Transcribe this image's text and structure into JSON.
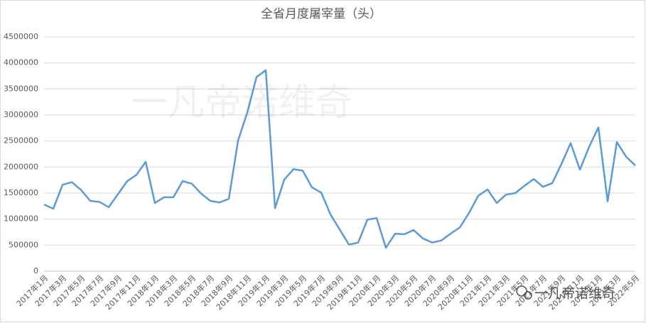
{
  "chart_data": {
    "type": "line",
    "title": "全省月度屠宰量（头）",
    "watermarks": [
      "一凡帝诺维奇",
      "一凡帝诺维奇"
    ],
    "categories": [
      "2017年1月",
      null,
      "2017年3月",
      null,
      "2017年5月",
      null,
      "2017年7月",
      null,
      "2017年9月",
      null,
      "2017年11月",
      null,
      "2018年1月",
      null,
      "2018年3月",
      null,
      "2018年5月",
      null,
      "2018年7月",
      null,
      "2018年9月",
      null,
      "2018年11月",
      null,
      "2019年1月",
      null,
      "2019年3月",
      null,
      "2019年5月",
      null,
      "2019年7月",
      null,
      "2019年9月",
      null,
      "2019年11月",
      null,
      "2020年1月",
      null,
      "2020年3月",
      null,
      "2020年5月",
      null,
      "2020年7月",
      null,
      "2020年9月",
      null,
      "2020年11月",
      null,
      "2021年1月",
      null,
      "2021年3月",
      null,
      "2021年5月",
      null,
      "2021年7月",
      null,
      "2021年9月",
      null,
      "2021年11月",
      null,
      "2022年1月",
      null,
      "2022年3月",
      null,
      "2022年5月"
    ],
    "series": [
      {
        "name": "屠宰量",
        "color": "#5b9bd5",
        "values": [
          1280000,
          1200000,
          1660000,
          1710000,
          1560000,
          1350000,
          1330000,
          1230000,
          1480000,
          1730000,
          1850000,
          2100000,
          1310000,
          1420000,
          1420000,
          1730000,
          1680000,
          1490000,
          1350000,
          1320000,
          1390000,
          2510000,
          3050000,
          3730000,
          3860000,
          1210000,
          1760000,
          1960000,
          1930000,
          1610000,
          1510000,
          1090000,
          800000,
          510000,
          550000,
          990000,
          1020000,
          450000,
          720000,
          710000,
          790000,
          630000,
          550000,
          590000,
          720000,
          840000,
          1120000,
          1450000,
          1570000,
          1310000,
          1470000,
          1500000,
          1640000,
          1770000,
          1620000,
          1690000,
          2060000,
          2460000,
          1950000,
          2390000,
          2760000,
          1340000,
          2480000,
          2200000,
          2030000
        ]
      }
    ],
    "ylim": [
      0,
      4500000
    ],
    "yticks": [
      0,
      500000,
      1000000,
      1500000,
      2000000,
      2500000,
      3000000,
      3500000,
      4000000,
      4500000
    ],
    "grid": true
  }
}
